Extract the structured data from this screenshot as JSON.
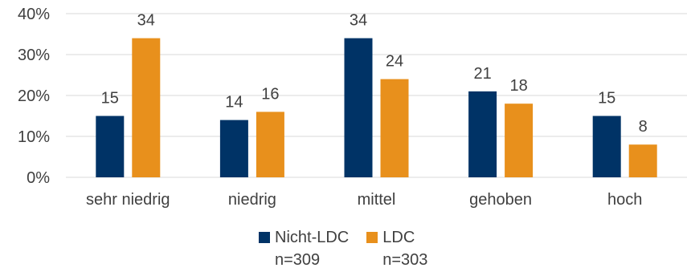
{
  "chart_data": {
    "type": "bar",
    "categories": [
      "sehr niedrig",
      "niedrig",
      "mittel",
      "gehoben",
      "hoch"
    ],
    "series": [
      {
        "name": "Nicht-LDC",
        "n_label": "n=309",
        "color": "#003366",
        "values": [
          15,
          14,
          34,
          21,
          15
        ]
      },
      {
        "name": "LDC",
        "n_label": "n=303",
        "color": "#E8901C",
        "values": [
          34,
          16,
          24,
          18,
          8
        ]
      }
    ],
    "y_ticks": [
      "0%",
      "10%",
      "20%",
      "30%",
      "40%"
    ],
    "ylim": [
      0,
      40
    ],
    "grid": true,
    "legend_position": "bottom"
  }
}
